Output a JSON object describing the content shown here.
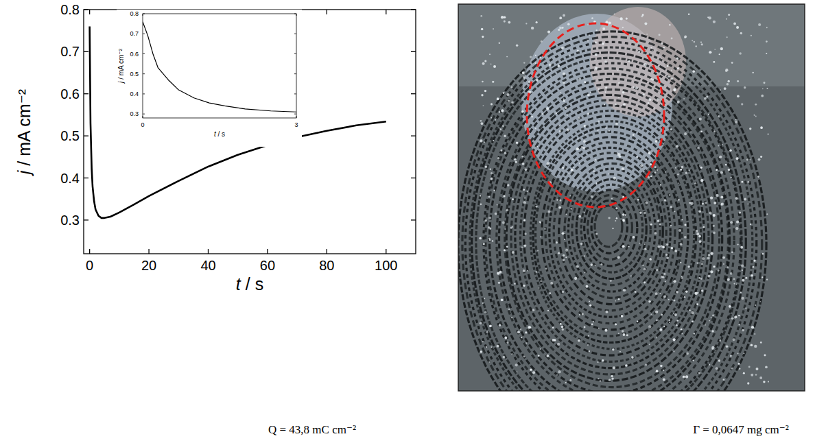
{
  "chart_data": [
    {
      "type": "line",
      "x_label": "t / s",
      "y_label": "j / mA cm⁻²",
      "x": [
        0,
        0.3,
        0.7,
        1,
        1.5,
        2,
        3,
        4,
        5,
        7,
        10,
        15,
        20,
        30,
        40,
        50,
        60,
        70,
        80,
        90,
        100
      ],
      "series": [
        {
          "color": "#000000",
          "line_style": "solid",
          "values": [
            0.76,
            0.53,
            0.42,
            0.38,
            0.345,
            0.325,
            0.31,
            0.305,
            0.305,
            0.308,
            0.318,
            0.337,
            0.357,
            0.393,
            0.427,
            0.455,
            0.478,
            0.497,
            0.512,
            0.525,
            0.534
          ]
        }
      ],
      "xlim": [
        -2,
        110
      ],
      "xticks": [
        0,
        20,
        40,
        60,
        80,
        100
      ],
      "ylim": [
        0.22,
        0.8
      ],
      "yticks": [
        0.3,
        0.4,
        0.5,
        0.6,
        0.7,
        0.8
      ],
      "grid": false
    },
    {
      "type": "line",
      "x_label": "t / s",
      "y_label": "j / mA cm⁻²",
      "x": [
        0,
        0.1,
        0.2,
        0.3,
        0.5,
        0.7,
        1,
        1.3,
        1.6,
        2,
        2.5,
        3
      ],
      "series": [
        {
          "color": "#000000",
          "line_style": "solid",
          "values": [
            0.76,
            0.69,
            0.6,
            0.53,
            0.47,
            0.42,
            0.38,
            0.355,
            0.34,
            0.325,
            0.315,
            0.31
          ]
        }
      ],
      "xlim": [
        0,
        3
      ],
      "xticks": [
        0,
        3
      ],
      "ylim": [
        0.28,
        0.8
      ],
      "yticks": [
        0.3,
        0.4,
        0.5,
        0.6,
        0.7,
        0.8
      ],
      "grid": false
    }
  ],
  "captions": [
    "Q = 43,8 mC cm⁻²",
    "Γ = 0,0647 mg cm⁻²"
  ]
}
